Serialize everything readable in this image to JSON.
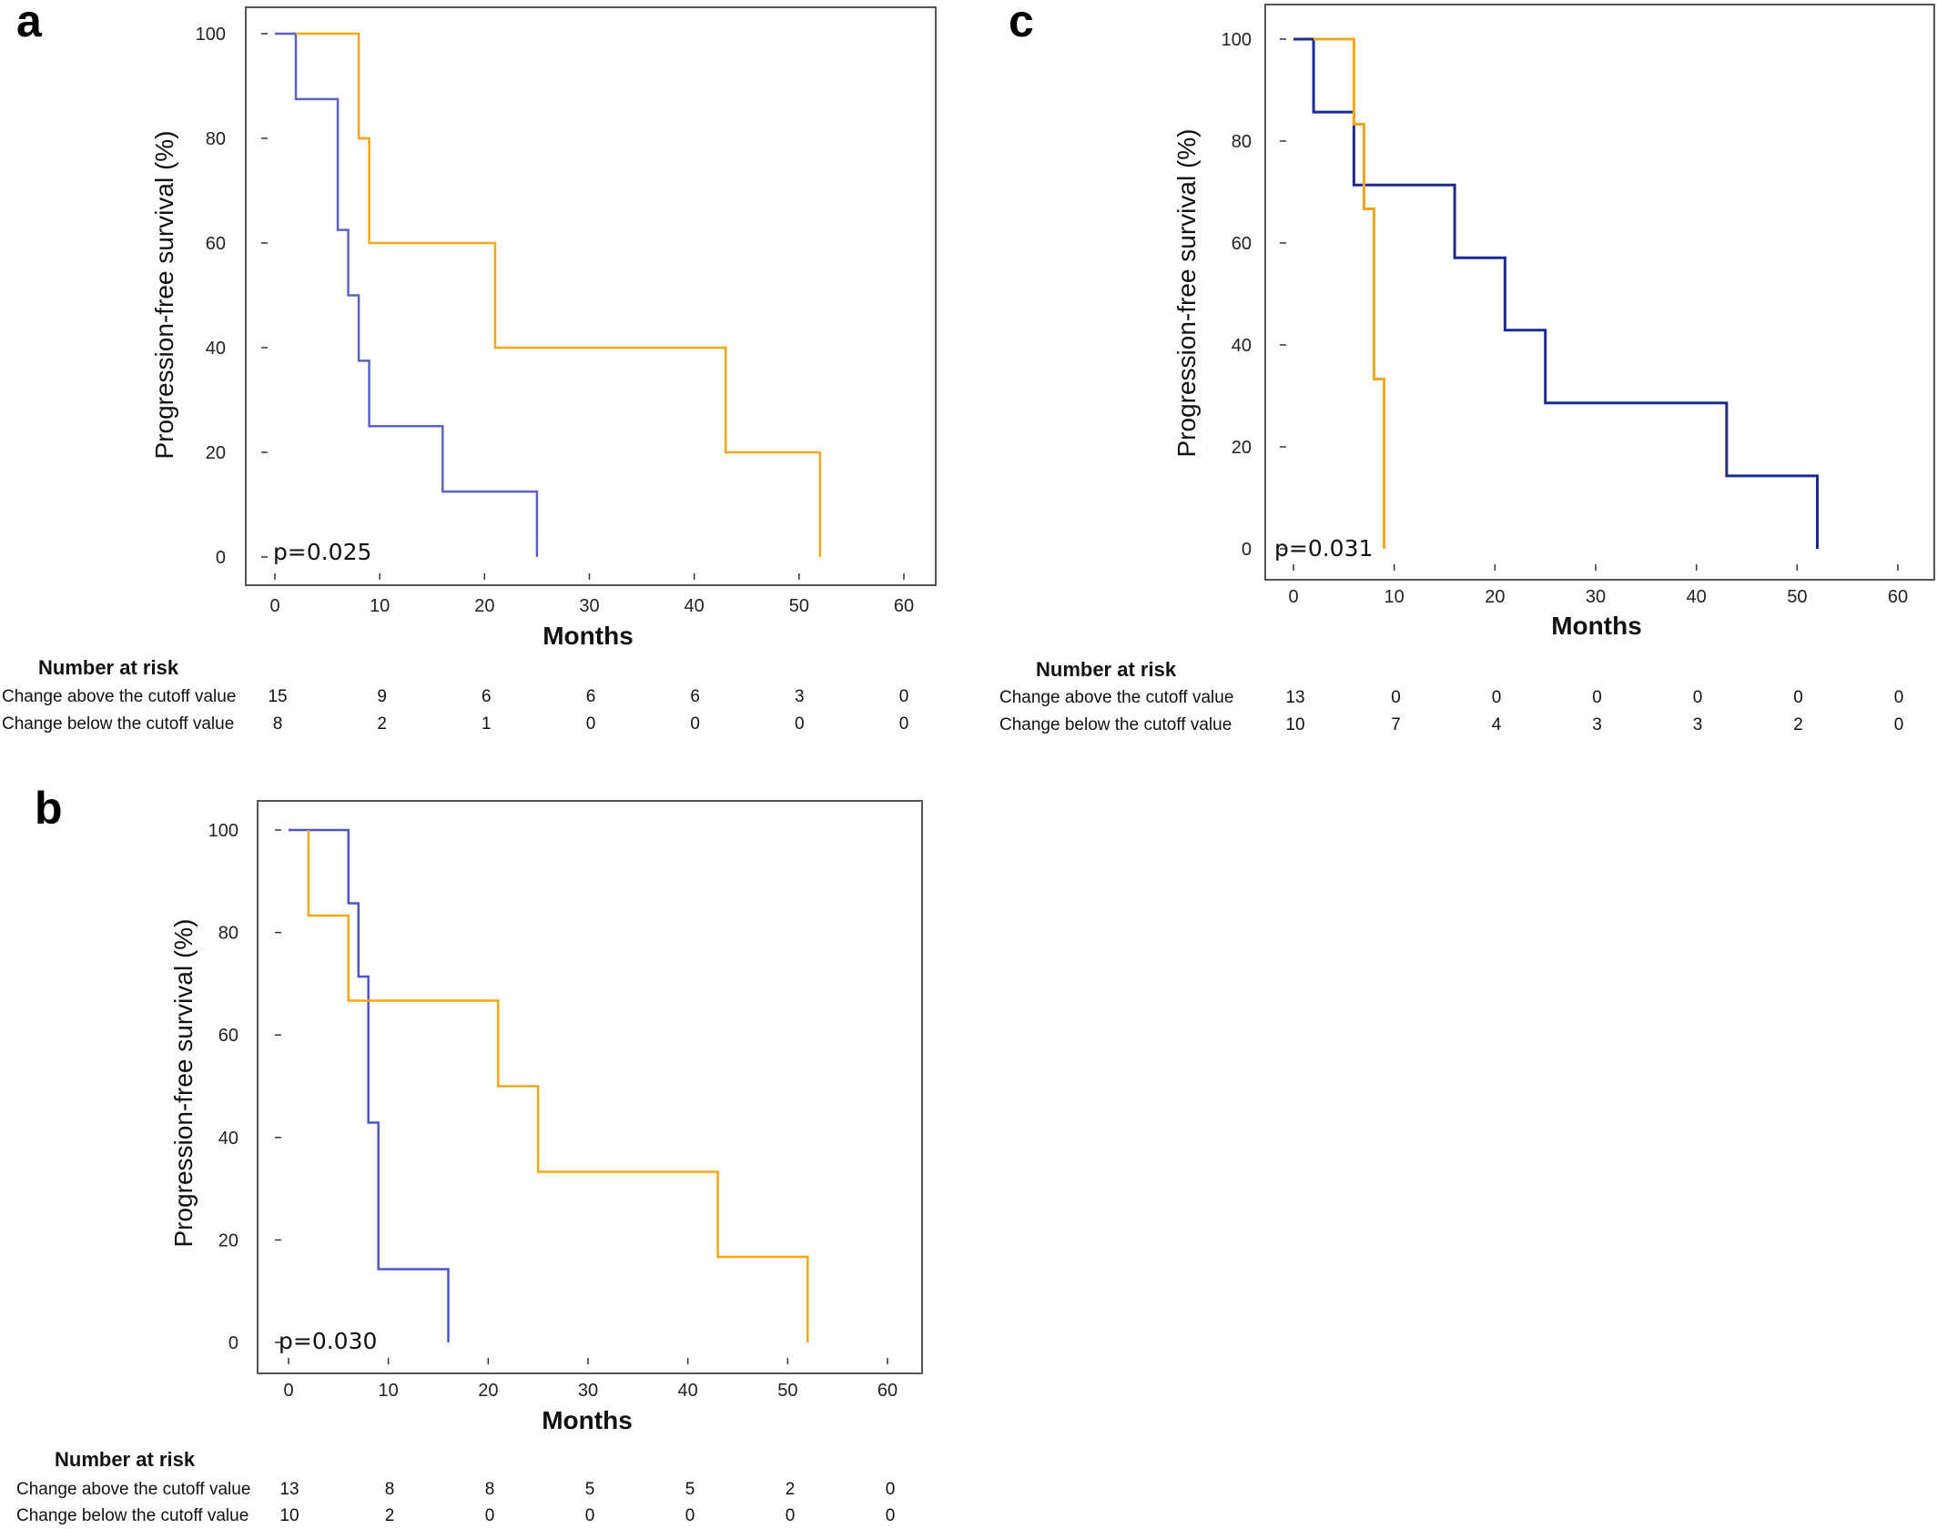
{
  "colors": {
    "above": "#F0A818",
    "below_a": "#5A63C2",
    "below_b": "#4B56C8",
    "below_c": "#1E2B8E",
    "frame": "#555555"
  },
  "chart_data": [
    {
      "type": "line",
      "panel": "a",
      "xlabel": "Months",
      "ylabel": "Progression-free survival (%)",
      "xlim": [
        0,
        60
      ],
      "ylim": [
        0,
        100
      ],
      "xticks": [
        0,
        10,
        20,
        30,
        40,
        50,
        60
      ],
      "yticks": [
        0,
        20,
        40,
        60,
        80,
        100
      ],
      "annotation": "p=0.025",
      "series": [
        {
          "color_key": "below_a",
          "steps": [
            [
              0,
              100
            ],
            [
              2,
              100
            ],
            [
              2,
              87.5
            ],
            [
              6,
              87.5
            ],
            [
              6,
              62.5
            ],
            [
              7,
              62.5
            ],
            [
              7,
              50
            ],
            [
              8,
              50
            ],
            [
              8,
              37.5
            ],
            [
              9,
              37.5
            ],
            [
              9,
              25
            ],
            [
              16,
              25
            ],
            [
              16,
              12.5
            ],
            [
              25,
              12.5
            ],
            [
              25,
              0
            ]
          ]
        },
        {
          "color_key": "above",
          "steps": [
            [
              2,
              100
            ],
            [
              8,
              100
            ],
            [
              8,
              80
            ],
            [
              9,
              80
            ],
            [
              9,
              60
            ],
            [
              21,
              60
            ],
            [
              21,
              40
            ],
            [
              43,
              40
            ],
            [
              43,
              20
            ],
            [
              52,
              20
            ],
            [
              52,
              0
            ]
          ]
        }
      ],
      "risk_table": {
        "header": "Number at risk",
        "rows": [
          {
            "label": "Change above the cutoff value",
            "values": [
              "15",
              "9",
              "6",
              "6",
              "6",
              "3",
              "0"
            ]
          },
          {
            "label": "Change below the cutoff value",
            "values": [
              "8",
              "2",
              "1",
              "0",
              "0",
              "0",
              "0"
            ]
          }
        ]
      }
    },
    {
      "type": "line",
      "panel": "b",
      "xlabel": "Months",
      "ylabel": "Progression-free survival (%)",
      "xlim": [
        0,
        60
      ],
      "ylim": [
        0,
        100
      ],
      "xticks": [
        0,
        10,
        20,
        30,
        40,
        50,
        60
      ],
      "yticks": [
        0,
        20,
        40,
        60,
        80,
        100
      ],
      "annotation": "p=0.030",
      "series": [
        {
          "color_key": "below_b",
          "steps": [
            [
              0,
              100
            ],
            [
              6,
              100
            ],
            [
              6,
              85.7
            ],
            [
              7,
              85.7
            ],
            [
              7,
              71.4
            ],
            [
              8,
              71.4
            ],
            [
              8,
              42.9
            ],
            [
              9,
              42.9
            ],
            [
              9,
              14.3
            ],
            [
              16,
              14.3
            ],
            [
              16,
              0
            ]
          ]
        },
        {
          "color_key": "above",
          "steps": [
            [
              2,
              100
            ],
            [
              2,
              83.3
            ],
            [
              6,
              83.3
            ],
            [
              6,
              66.7
            ],
            [
              21,
              66.7
            ],
            [
              21,
              50
            ],
            [
              25,
              50
            ],
            [
              25,
              33.3
            ],
            [
              43,
              33.3
            ],
            [
              43,
              16.7
            ],
            [
              52,
              16.7
            ],
            [
              52,
              0
            ]
          ]
        }
      ],
      "risk_table": {
        "header": "Number at risk",
        "rows": [
          {
            "label": "Change above the cutoff value",
            "values": [
              "13",
              "8",
              "8",
              "5",
              "5",
              "2",
              "0"
            ]
          },
          {
            "label": "Change below the cutoff value",
            "values": [
              "10",
              "2",
              "0",
              "0",
              "0",
              "0",
              "0"
            ]
          }
        ]
      }
    },
    {
      "type": "line",
      "panel": "c",
      "xlabel": "Months",
      "ylabel": "Progression-free survival (%)",
      "xlim": [
        0,
        60
      ],
      "ylim": [
        0,
        100
      ],
      "xticks": [
        0,
        10,
        20,
        30,
        40,
        50,
        60
      ],
      "yticks": [
        0,
        20,
        40,
        60,
        80,
        100
      ],
      "annotation": "p=0.031",
      "series": [
        {
          "color_key": "below_c",
          "steps": [
            [
              0,
              100
            ],
            [
              2,
              100
            ],
            [
              2,
              85.7
            ],
            [
              6,
              85.7
            ],
            [
              6,
              71.4
            ],
            [
              16,
              71.4
            ],
            [
              16,
              57.1
            ],
            [
              21,
              57.1
            ],
            [
              21,
              42.9
            ],
            [
              25,
              42.9
            ],
            [
              25,
              28.6
            ],
            [
              43,
              28.6
            ],
            [
              43,
              14.3
            ],
            [
              52,
              14.3
            ],
            [
              52,
              0
            ]
          ]
        },
        {
          "color_key": "above",
          "steps": [
            [
              2,
              100
            ],
            [
              6,
              100
            ],
            [
              6,
              83.3
            ],
            [
              7,
              83.3
            ],
            [
              7,
              66.7
            ],
            [
              8,
              66.7
            ],
            [
              8,
              33.3
            ],
            [
              9,
              33.3
            ],
            [
              9,
              0
            ]
          ]
        }
      ],
      "risk_table": {
        "header": "Number at risk",
        "rows": [
          {
            "label": "Change above the cutoff value",
            "values": [
              "13",
              "0",
              "0",
              "0",
              "0",
              "0",
              "0"
            ]
          },
          {
            "label": "Change below the cutoff value",
            "values": [
              "10",
              "7",
              "4",
              "3",
              "3",
              "2",
              "0"
            ]
          }
        ]
      }
    }
  ]
}
